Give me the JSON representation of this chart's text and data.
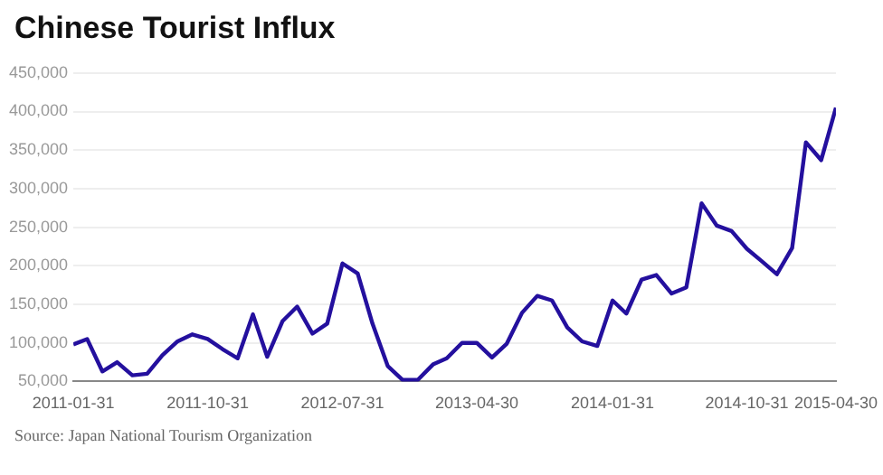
{
  "chart_data": {
    "type": "line",
    "title": "Chinese Tourist Influx",
    "annotations": [
      "Source: Japan National Tourism Organization"
    ],
    "x": [
      "2011-01-31",
      "2011-02-28",
      "2011-03-31",
      "2011-04-30",
      "2011-05-31",
      "2011-06-30",
      "2011-07-31",
      "2011-08-31",
      "2011-09-30",
      "2011-10-31",
      "2011-11-30",
      "2011-12-31",
      "2012-01-31",
      "2012-02-29",
      "2012-03-31",
      "2012-04-30",
      "2012-05-31",
      "2012-06-30",
      "2012-07-31",
      "2012-08-31",
      "2012-09-30",
      "2012-10-31",
      "2012-11-30",
      "2012-12-31",
      "2013-01-31",
      "2013-02-28",
      "2013-03-31",
      "2013-04-30",
      "2013-05-31",
      "2013-06-30",
      "2013-07-31",
      "2013-08-31",
      "2013-09-30",
      "2013-10-31",
      "2013-11-30",
      "2013-12-31",
      "2014-01-31",
      "2014-02-28",
      "2014-03-31",
      "2014-04-30",
      "2014-05-31",
      "2014-06-30",
      "2014-07-31",
      "2014-08-31",
      "2014-09-30",
      "2014-10-31",
      "2014-11-30",
      "2014-12-31",
      "2015-01-31",
      "2015-02-28",
      "2015-03-31",
      "2015-04-30"
    ],
    "series": [
      {
        "color": "#24109e",
        "values": [
          98000,
          105000,
          63000,
          75000,
          58000,
          60000,
          84000,
          102000,
          111000,
          105000,
          92000,
          80000,
          137000,
          82000,
          128000,
          147000,
          112000,
          125000,
          203000,
          190000,
          125000,
          70000,
          52000,
          52000,
          72000,
          80000,
          100000,
          100000,
          81000,
          99000,
          139000,
          161000,
          155000,
          120000,
          102000,
          96000,
          155000,
          138000,
          182000,
          188000,
          164000,
          172000,
          281000,
          252000,
          245000,
          222000,
          206000,
          189000,
          223000,
          360000,
          337000,
          405000
        ]
      }
    ],
    "xlim": [
      "2011-01-31",
      "2015-04-30"
    ],
    "xticks": [
      "2011-01-31",
      "2011-10-31",
      "2012-07-31",
      "2013-04-30",
      "2014-01-31",
      "2014-10-31",
      "2015-04-30"
    ],
    "ylim": [
      50000,
      450000
    ],
    "yticks": [
      {
        "value": 50000,
        "label": "50,000"
      },
      {
        "value": 100000,
        "label": "100,000"
      },
      {
        "value": 150000,
        "label": "150,000"
      },
      {
        "value": 200000,
        "label": "200,000"
      },
      {
        "value": 250000,
        "label": "250,000"
      },
      {
        "value": 300000,
        "label": "300,000"
      },
      {
        "value": 350000,
        "label": "350,000"
      },
      {
        "value": 400000,
        "label": "400,000"
      },
      {
        "value": 450000,
        "label": "450,000"
      }
    ],
    "grid": "y",
    "legend": false,
    "marker": "none",
    "line_style": "solid"
  }
}
